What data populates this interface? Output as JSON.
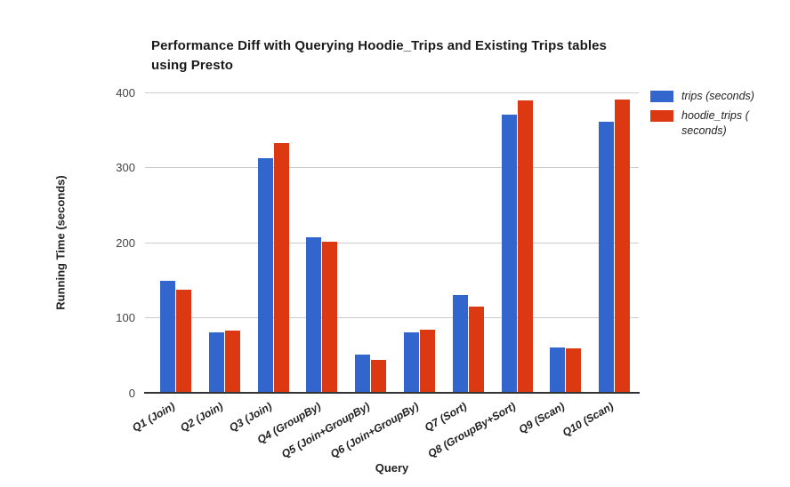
{
  "header": {
    "title_line1": "Performance Diff with Querying Hoodie_Trips and Existing Trips tables",
    "title_line2": "using Presto"
  },
  "chart_data": {
    "type": "bar",
    "title": "Performance Diff with Querying Hoodie_Trips and Existing Trips tables using Presto",
    "xlabel": "Query",
    "ylabel": "Running Time (seconds)",
    "ylim": [
      0,
      400
    ],
    "yticks": [
      0,
      100,
      200,
      300,
      400
    ],
    "grid": true,
    "legend_position": "right",
    "categories": [
      "Q1 (Join)",
      "Q2 (Join)",
      "Q3 (Join)",
      "Q4 (GroupBy)",
      "Q5 (Join+GroupBy)",
      "Q6 (Join+GroupBy)",
      "Q7 (Sort)",
      "Q8 (GroupBy+Sort)",
      "Q9 (Scan)",
      "Q10 (Scan)"
    ],
    "series": [
      {
        "name": "trips (seconds)",
        "slug": "trips",
        "color": "#3366CC",
        "legend_lines": [
          "trips (seconds)"
        ],
        "values": [
          149,
          80,
          312,
          207,
          51,
          80,
          130,
          371,
          60,
          361
        ]
      },
      {
        "name": "hoodie_trips (seconds)",
        "slug": "hoodie-trips",
        "color": "#DC3912",
        "legend_lines": [
          "hoodie_trips (",
          "seconds)"
        ],
        "values": [
          137,
          83,
          332,
          201,
          44,
          84,
          115,
          389,
          59,
          391
        ]
      }
    ]
  }
}
